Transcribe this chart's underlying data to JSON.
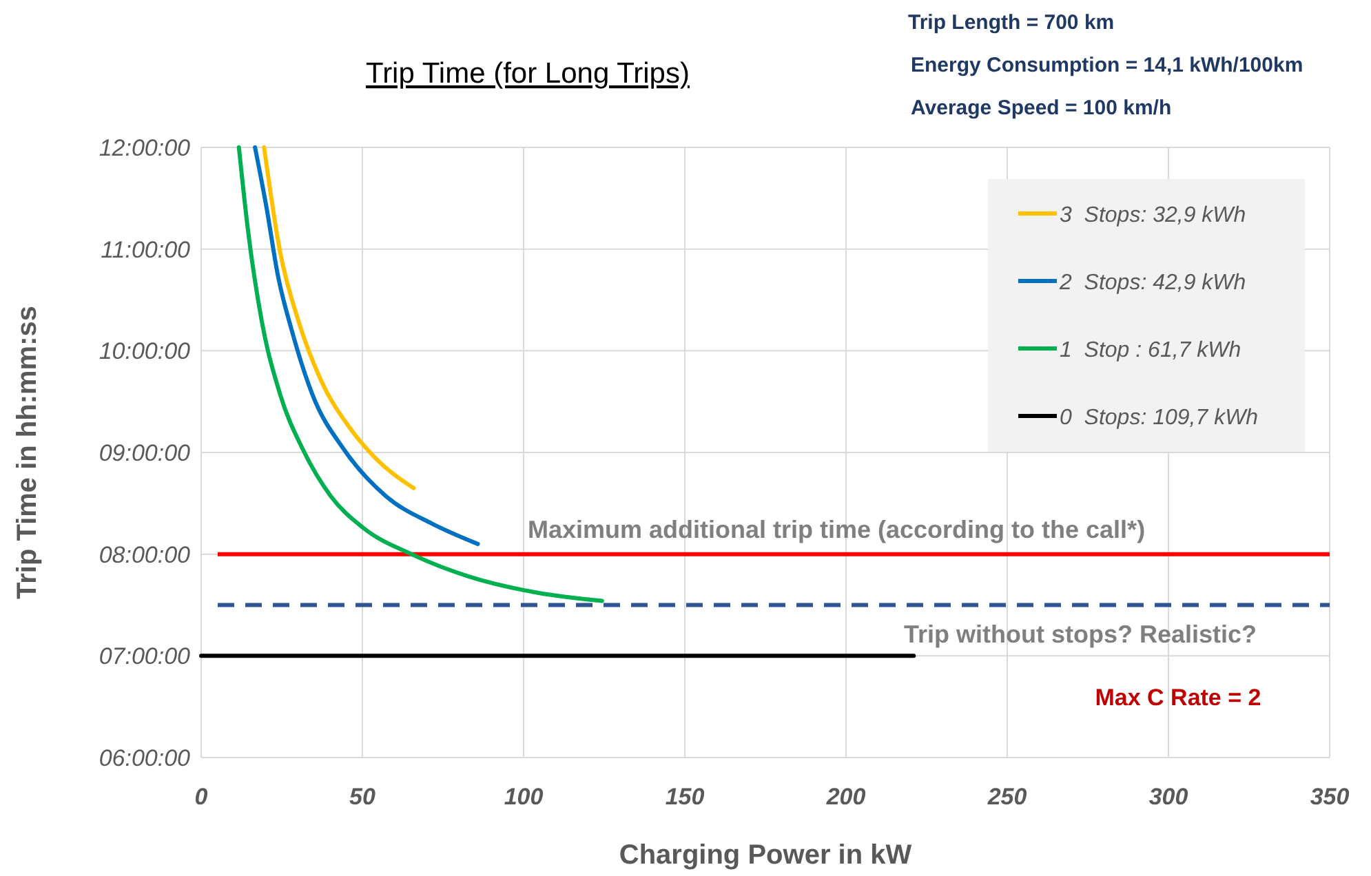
{
  "chart_data": {
    "type": "line",
    "title": "Trip Time (for Long Trips)",
    "xlabel": "Charging Power in kW",
    "ylabel": "Trip Time in hh:mm:ss",
    "annotations": [
      "Trip Length = 700 km",
      "Energy Consumption = 14,1 kWh/100km",
      "Average Speed = 100 km/h",
      "Max C Rate = 2"
    ],
    "series": [
      {
        "name": "3  Stops: 32,9 kWh",
        "color": "#ffc000",
        "x": [
          19.5,
          24.5,
          30.2,
          37.3,
          45.9,
          54.5,
          65.9
        ],
        "values": [
          12,
          10.97,
          10.29,
          9.7,
          9.25,
          8.93,
          8.65
        ]
      },
      {
        "name": "2  Stops: 42,9 kWh",
        "color": "#0070c0",
        "x": [
          16.7,
          20.2,
          23.8,
          28.1,
          34.5,
          44.5,
          57.3,
          71.6,
          85.8
        ],
        "values": [
          12,
          11.42,
          10.74,
          10.2,
          9.57,
          9.02,
          8.57,
          8.3,
          8.1
        ]
      },
      {
        "name": "1  Stop : 61,7 kWh",
        "color": "#00b050",
        "x": [
          11.7,
          14.5,
          18.8,
          24.5,
          31.7,
          40.2,
          50.2,
          65.9,
          83,
          104.4,
          124.3
        ],
        "values": [
          12,
          11.19,
          10.29,
          9.57,
          9.02,
          8.57,
          8.26,
          7.99,
          7.78,
          7.62,
          7.54
        ]
      },
      {
        "name": "0  Stops: 109,7 kWh",
        "color": "#000000",
        "x": [
          0,
          221
        ],
        "values": [
          7,
          7
        ]
      }
    ],
    "ref_lines": [
      {
        "axis": "y",
        "value": 8,
        "label": "Maximum additional trip time (according to the call*)",
        "color": "#ff0000",
        "line_style": "solid"
      },
      {
        "axis": "y",
        "value": 7.5,
        "label": "Trip without stops? Realistic?",
        "color": "#2f5597",
        "line_style": "dashed"
      }
    ],
    "xlim": [
      0,
      350
    ],
    "xticks": [
      0,
      50,
      100,
      150,
      200,
      250,
      300,
      350
    ],
    "ylim": [
      6,
      12
    ],
    "yticks": [
      {
        "value": 6,
        "label": "06:00:00"
      },
      {
        "value": 7,
        "label": "07:00:00"
      },
      {
        "value": 8,
        "label": "08:00:00"
      },
      {
        "value": 9,
        "label": "09:00:00"
      },
      {
        "value": 10,
        "label": "10:00:00"
      },
      {
        "value": 11,
        "label": "11:00:00"
      },
      {
        "value": 12,
        "label": "12:00:00"
      }
    ],
    "grid": true,
    "legend": "top right",
    "marker": "none",
    "line_style": "solid"
  }
}
